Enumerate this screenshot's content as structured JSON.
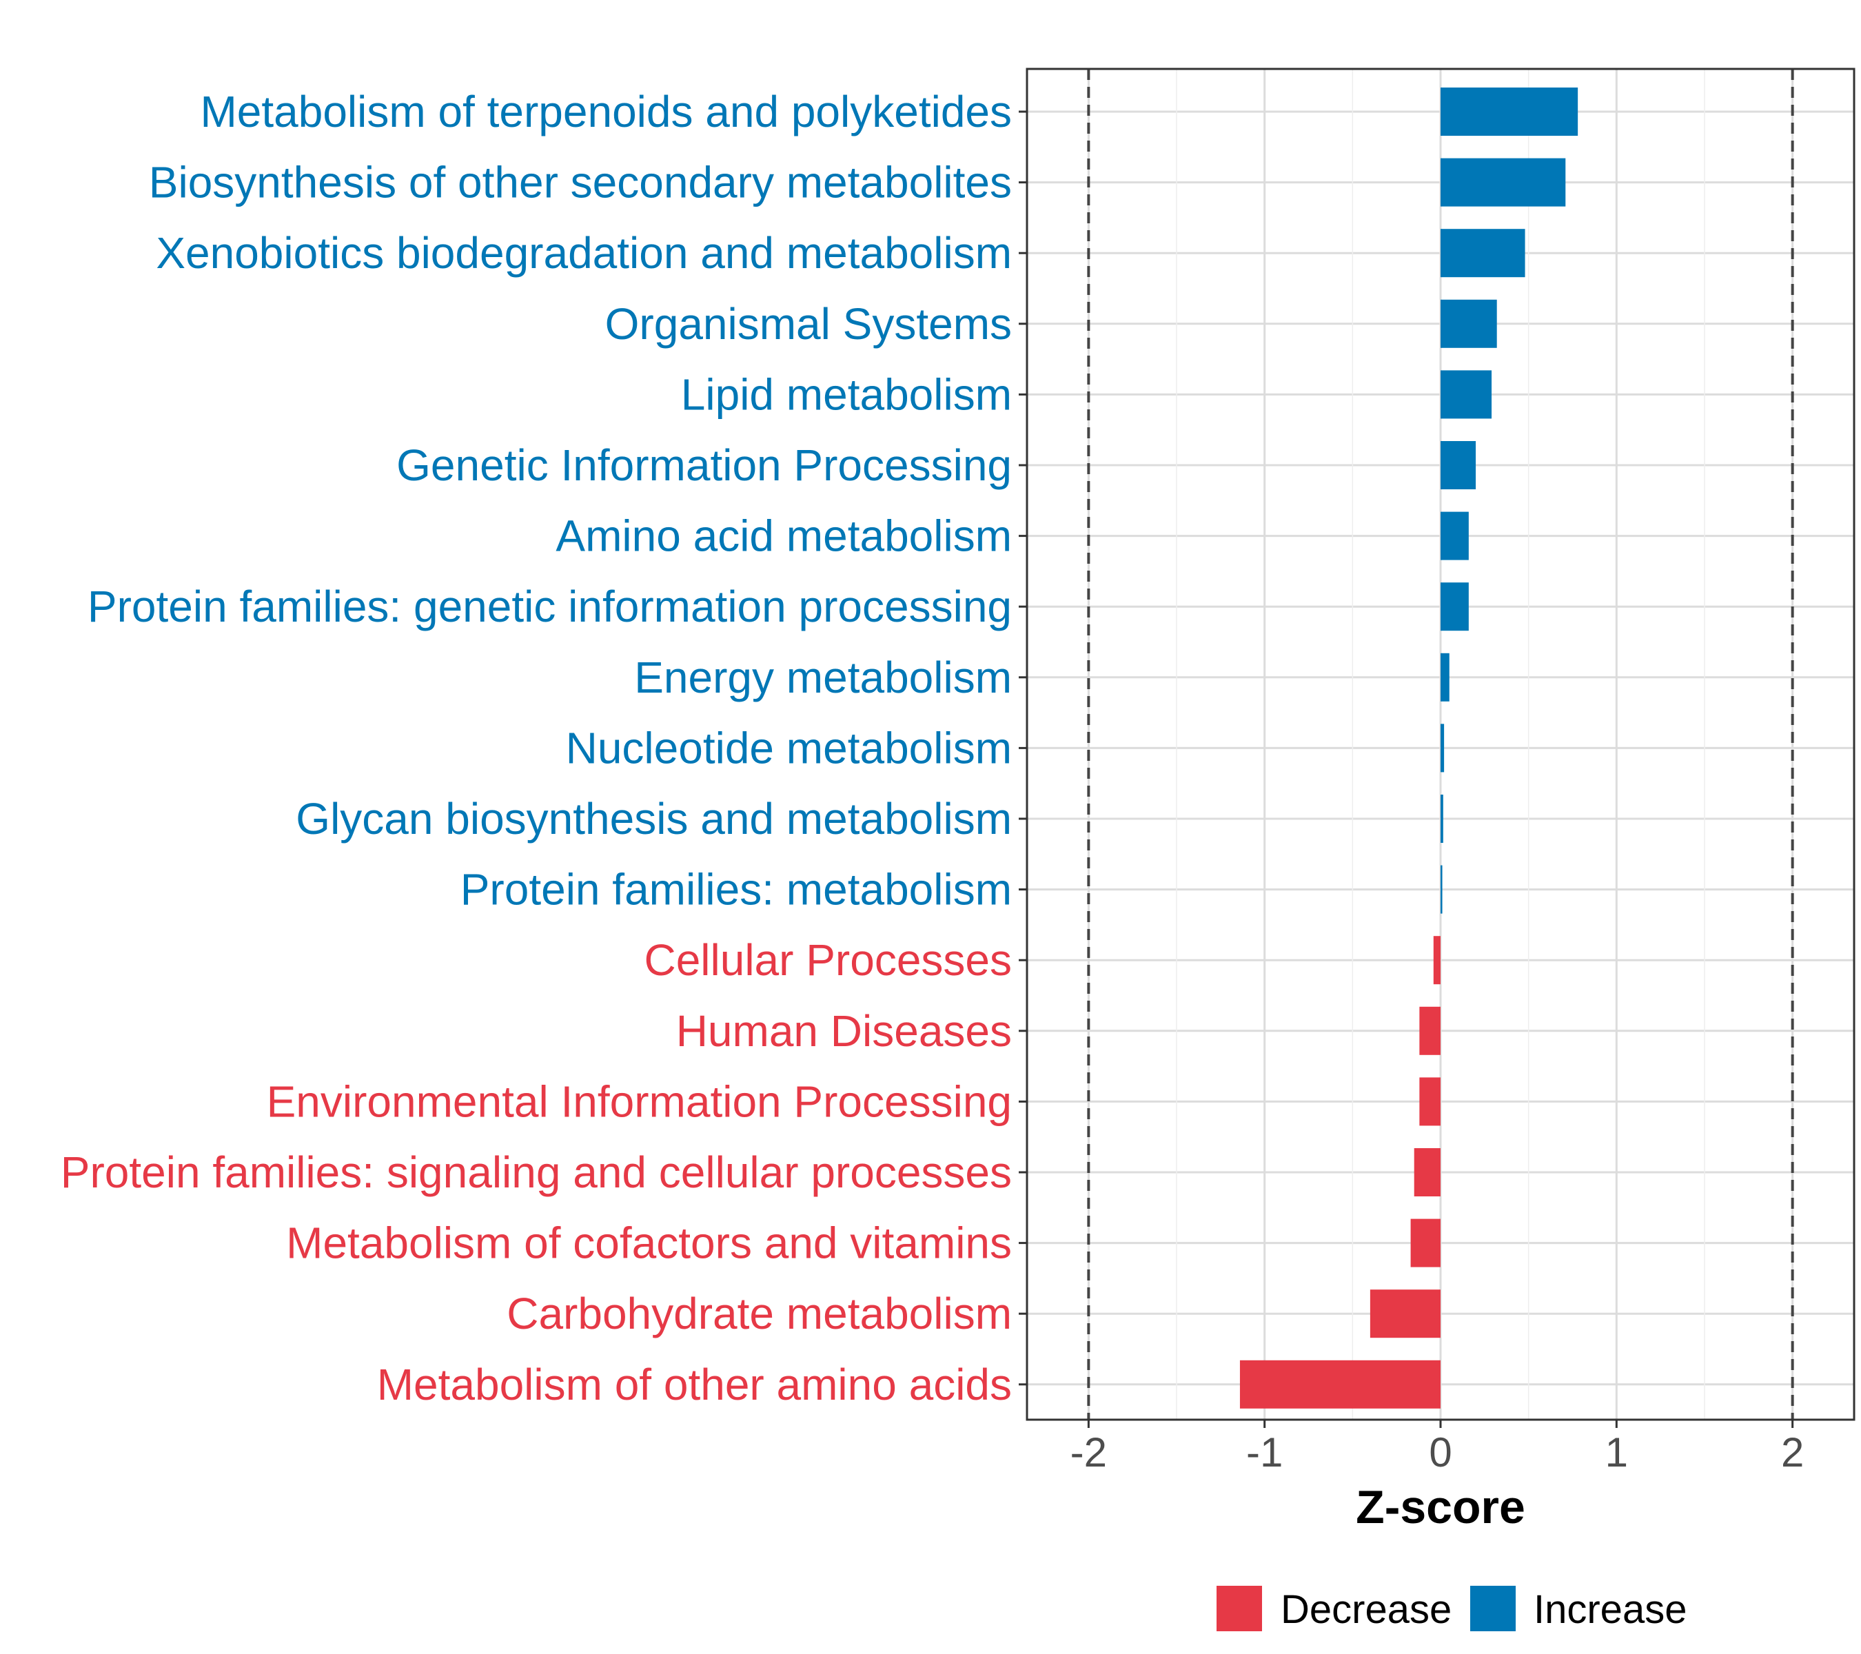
{
  "chart_data": {
    "type": "bar",
    "orientation": "horizontal",
    "xlabel": "Z-score",
    "xlim": [
      -2.35,
      2.35
    ],
    "xticks": [
      -2,
      -1,
      0,
      1,
      2
    ],
    "xtick_labels": [
      "-2",
      "-1",
      "0",
      "1",
      "2"
    ],
    "reference_lines": [
      -2,
      2
    ],
    "grid": true,
    "legend_position": "bottom",
    "colors": {
      "Decrease": "#e63946",
      "Increase": "#0077b6"
    },
    "legend": [
      {
        "label": "Decrease",
        "color": "#e63946"
      },
      {
        "label": "Increase",
        "color": "#0077b6"
      }
    ],
    "categories": [
      "Metabolism of terpenoids and polyketides",
      "Biosynthesis of other secondary metabolites",
      "Xenobiotics biodegradation and metabolism",
      "Organismal Systems",
      "Lipid metabolism",
      "Genetic Information Processing",
      "Amino acid metabolism",
      "Protein families: genetic information processing",
      "Energy metabolism",
      "Nucleotide metabolism",
      "Glycan biosynthesis and metabolism",
      "Protein families: metabolism",
      "Cellular Processes",
      "Human Diseases",
      "Environmental Information Processing",
      "Protein families: signaling and cellular processes",
      "Metabolism of cofactors and vitamins",
      "Carbohydrate metabolism",
      "Metabolism of other amino acids"
    ],
    "values": [
      0.78,
      0.71,
      0.48,
      0.32,
      0.29,
      0.2,
      0.16,
      0.16,
      0.05,
      0.02,
      0.015,
      0.01,
      -0.04,
      -0.12,
      -0.12,
      -0.15,
      -0.17,
      -0.4,
      -1.14
    ],
    "groups": [
      "Increase",
      "Increase",
      "Increase",
      "Increase",
      "Increase",
      "Increase",
      "Increase",
      "Increase",
      "Increase",
      "Increase",
      "Increase",
      "Increase",
      "Decrease",
      "Decrease",
      "Decrease",
      "Decrease",
      "Decrease",
      "Decrease",
      "Decrease"
    ]
  }
}
